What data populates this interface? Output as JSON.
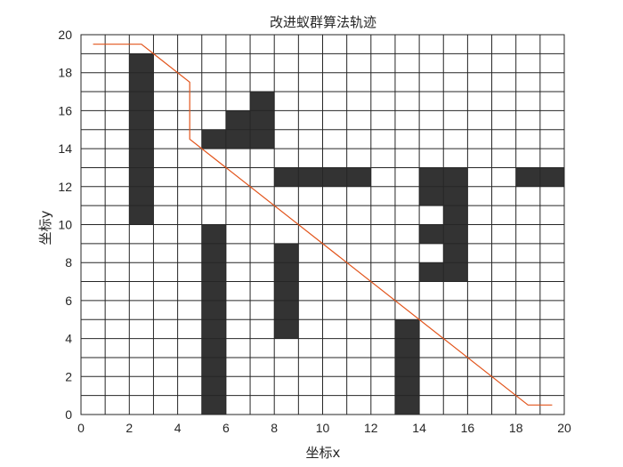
{
  "chart_data": {
    "type": "grid-path",
    "title": "改进蚁群算法轨迹",
    "xlabel": "坐标x",
    "ylabel": "坐标y",
    "xlim": [
      0,
      20
    ],
    "ylim": [
      0,
      20
    ],
    "x_ticks": [
      0,
      2,
      4,
      6,
      8,
      10,
      12,
      14,
      16,
      18,
      20
    ],
    "y_ticks": [
      0,
      2,
      4,
      6,
      8,
      10,
      12,
      14,
      16,
      18,
      20
    ],
    "grid": true,
    "grid_size": 20,
    "obstacle_color": "#333333",
    "path_color": "#E2541B",
    "obstacles": [
      {
        "col": 2,
        "row": 10
      },
      {
        "col": 2,
        "row": 11
      },
      {
        "col": 2,
        "row": 12
      },
      {
        "col": 2,
        "row": 13
      },
      {
        "col": 2,
        "row": 14
      },
      {
        "col": 2,
        "row": 15
      },
      {
        "col": 2,
        "row": 16
      },
      {
        "col": 2,
        "row": 17
      },
      {
        "col": 2,
        "row": 18
      },
      {
        "col": 5,
        "row": 14
      },
      {
        "col": 6,
        "row": 14
      },
      {
        "col": 7,
        "row": 14
      },
      {
        "col": 6,
        "row": 15
      },
      {
        "col": 7,
        "row": 15
      },
      {
        "col": 7,
        "row": 16
      },
      {
        "col": 8,
        "row": 12
      },
      {
        "col": 9,
        "row": 12
      },
      {
        "col": 10,
        "row": 12
      },
      {
        "col": 11,
        "row": 12
      },
      {
        "col": 14,
        "row": 11
      },
      {
        "col": 14,
        "row": 12
      },
      {
        "col": 15,
        "row": 12
      },
      {
        "col": 15,
        "row": 11
      },
      {
        "col": 15,
        "row": 10
      },
      {
        "col": 15,
        "row": 9
      },
      {
        "col": 15,
        "row": 8
      },
      {
        "col": 15,
        "row": 7
      },
      {
        "col": 14,
        "row": 9
      },
      {
        "col": 14,
        "row": 7
      },
      {
        "col": 18,
        "row": 12
      },
      {
        "col": 19,
        "row": 12
      },
      {
        "col": 5,
        "row": 0
      },
      {
        "col": 5,
        "row": 1
      },
      {
        "col": 5,
        "row": 2
      },
      {
        "col": 5,
        "row": 3
      },
      {
        "col": 5,
        "row": 4
      },
      {
        "col": 5,
        "row": 5
      },
      {
        "col": 5,
        "row": 6
      },
      {
        "col": 5,
        "row": 7
      },
      {
        "col": 5,
        "row": 8
      },
      {
        "col": 5,
        "row": 9
      },
      {
        "col": 8,
        "row": 4
      },
      {
        "col": 8,
        "row": 5
      },
      {
        "col": 8,
        "row": 6
      },
      {
        "col": 8,
        "row": 7
      },
      {
        "col": 8,
        "row": 8
      },
      {
        "col": 13,
        "row": 0
      },
      {
        "col": 13,
        "row": 1
      },
      {
        "col": 13,
        "row": 2
      },
      {
        "col": 13,
        "row": 3
      },
      {
        "col": 13,
        "row": 4
      }
    ],
    "path": [
      {
        "x": 0.5,
        "y": 19.5
      },
      {
        "x": 2.5,
        "y": 19.5
      },
      {
        "x": 3.0,
        "y": 19.0
      },
      {
        "x": 4.5,
        "y": 17.5
      },
      {
        "x": 4.5,
        "y": 14.5
      },
      {
        "x": 18.5,
        "y": 0.5
      },
      {
        "x": 19.5,
        "y": 0.5
      }
    ]
  }
}
